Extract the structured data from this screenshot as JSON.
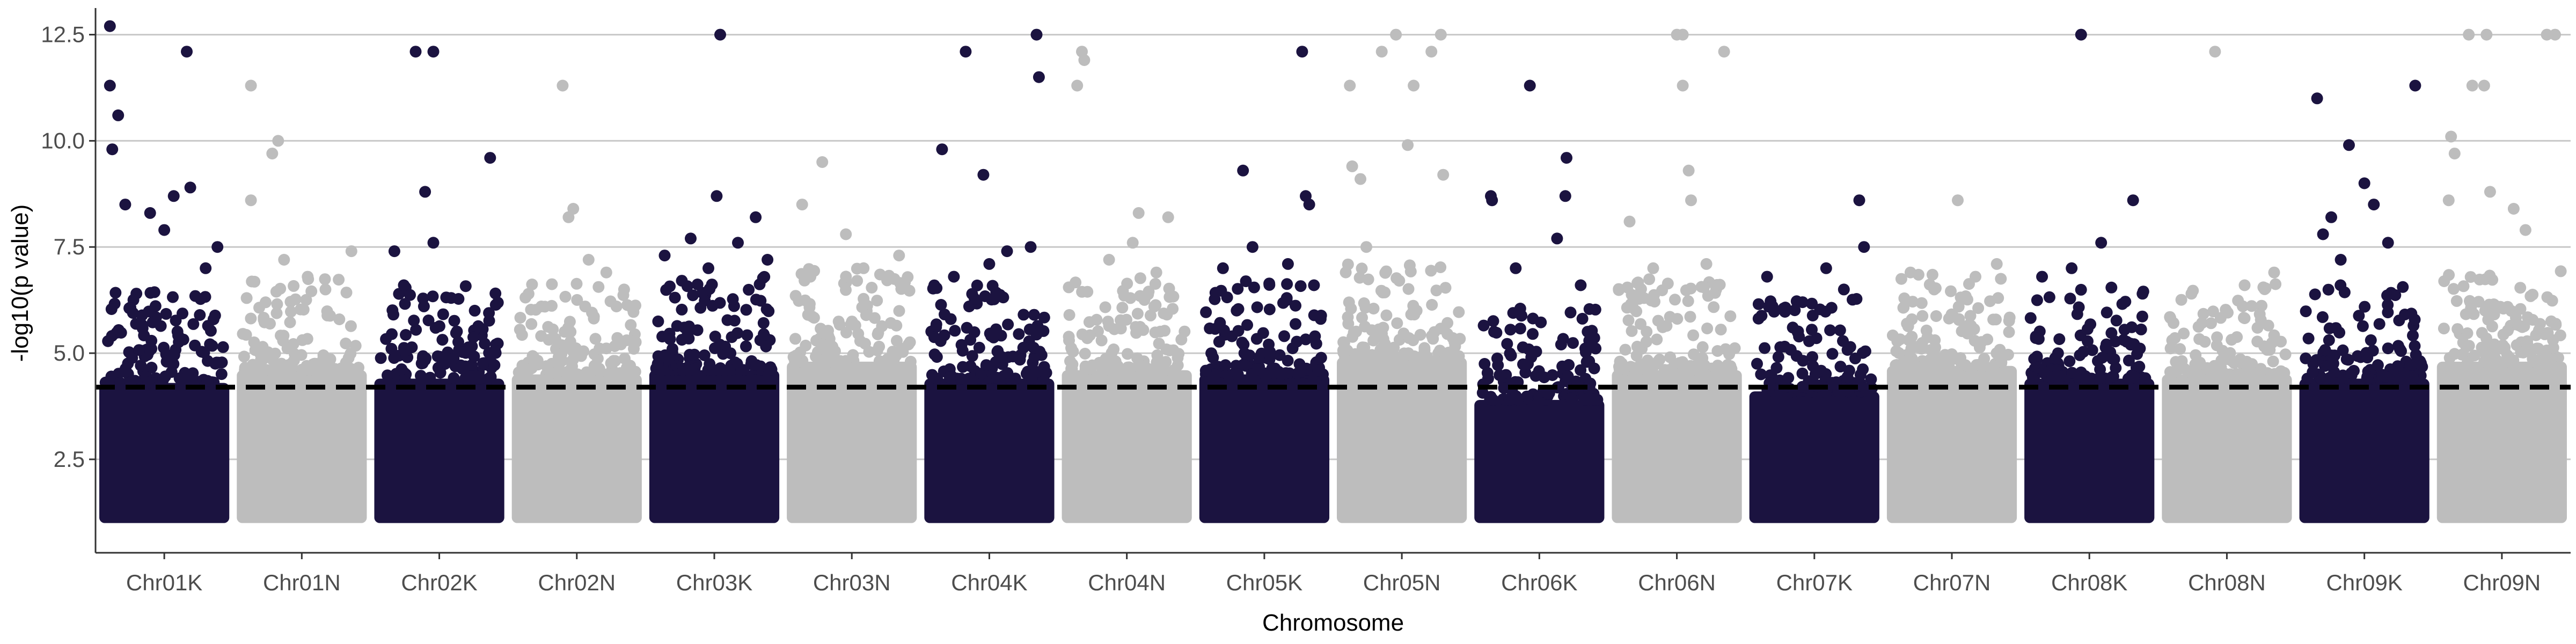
{
  "chart_data": {
    "type": "scatter",
    "subtype": "manhattan",
    "xlabel": "Chromosome",
    "ylabel": "-log10(p value)",
    "ylim": [
      0.3,
      13.0
    ],
    "y_ticks": [
      2.5,
      5.0,
      7.5,
      10.0,
      12.5
    ],
    "y_tick_labels": [
      "2.5",
      "5.0",
      "7.5",
      "10.0",
      "12.5"
    ],
    "grid": "horizontal major lines",
    "threshold": {
      "value": 4.2,
      "style": "dashed",
      "color": "#000000"
    },
    "colors": {
      "odd": "#1b1340",
      "even": "#bdbdbd"
    },
    "categories": [
      "Chr01K",
      "Chr01N",
      "Chr02K",
      "Chr02N",
      "Chr03K",
      "Chr03N",
      "Chr04K",
      "Chr04N",
      "Chr05K",
      "Chr05N",
      "Chr06K",
      "Chr06N",
      "Chr07K",
      "Chr07N",
      "Chr08K",
      "Chr08N",
      "Chr09K",
      "Chr09N"
    ],
    "series": [
      {
        "category": "Chr01K",
        "band_top": 4.3,
        "max": 12.7,
        "peaks": [
          [
            0.04,
            12.7
          ],
          [
            0.04,
            11.3
          ],
          [
            0.11,
            10.6
          ],
          [
            0.06,
            9.8
          ],
          [
            0.69,
            12.1
          ],
          [
            0.58,
            8.7
          ],
          [
            0.72,
            8.9
          ],
          [
            0.17,
            8.5
          ],
          [
            0.38,
            8.3
          ],
          [
            0.5,
            7.9
          ],
          [
            0.95,
            7.5
          ],
          [
            0.85,
            7.0
          ]
        ]
      },
      {
        "category": "Chr01N",
        "band_top": 4.6,
        "max": 11.3,
        "peaks": [
          [
            0.07,
            11.3
          ],
          [
            0.3,
            10.0
          ],
          [
            0.25,
            9.7
          ],
          [
            0.07,
            8.6
          ],
          [
            0.92,
            7.4
          ],
          [
            0.35,
            7.2
          ],
          [
            0.55,
            6.8
          ],
          [
            0.7,
            6.5
          ]
        ]
      },
      {
        "category": "Chr02K",
        "band_top": 4.4,
        "max": 12.1,
        "peaks": [
          [
            0.3,
            12.1
          ],
          [
            0.45,
            12.1
          ],
          [
            0.93,
            9.6
          ],
          [
            0.38,
            8.8
          ],
          [
            0.45,
            7.6
          ],
          [
            0.12,
            7.4
          ],
          [
            0.2,
            6.6
          ],
          [
            0.6,
            6.3
          ],
          [
            0.8,
            6.0
          ]
        ]
      },
      {
        "category": "Chr02N",
        "band_top": 4.5,
        "max": 11.3,
        "peaks": [
          [
            0.38,
            11.3
          ],
          [
            0.47,
            8.4
          ],
          [
            0.43,
            8.2
          ],
          [
            0.6,
            7.2
          ],
          [
            0.75,
            6.9
          ],
          [
            0.9,
            6.5
          ],
          [
            0.2,
            6.1
          ]
        ]
      },
      {
        "category": "Chr03K",
        "band_top": 4.6,
        "max": 12.5,
        "peaks": [
          [
            0.55,
            12.5
          ],
          [
            0.52,
            8.7
          ],
          [
            0.08,
            7.3
          ],
          [
            0.85,
            8.2
          ],
          [
            0.3,
            7.7
          ],
          [
            0.7,
            7.6
          ],
          [
            0.95,
            7.2
          ],
          [
            0.45,
            7.0
          ]
        ]
      },
      {
        "category": "Chr03N",
        "band_top": 4.8,
        "max": 9.5,
        "peaks": [
          [
            0.25,
            9.5
          ],
          [
            0.08,
            8.5
          ],
          [
            0.45,
            7.8
          ],
          [
            0.9,
            7.3
          ],
          [
            0.6,
            7.0
          ],
          [
            0.15,
            6.8
          ]
        ]
      },
      {
        "category": "Chr04K",
        "band_top": 4.4,
        "max": 12.5,
        "peaks": [
          [
            0.9,
            12.5
          ],
          [
            0.92,
            11.5
          ],
          [
            0.3,
            12.1
          ],
          [
            0.1,
            9.8
          ],
          [
            0.45,
            9.2
          ],
          [
            0.85,
            7.5
          ],
          [
            0.65,
            7.4
          ],
          [
            0.5,
            7.1
          ],
          [
            0.2,
            6.8
          ]
        ]
      },
      {
        "category": "Chr04N",
        "band_top": 4.6,
        "max": 12.1,
        "peaks": [
          [
            0.12,
            12.1
          ],
          [
            0.14,
            11.9
          ],
          [
            0.08,
            11.3
          ],
          [
            0.6,
            8.3
          ],
          [
            0.85,
            8.2
          ],
          [
            0.55,
            7.6
          ],
          [
            0.35,
            7.2
          ],
          [
            0.75,
            6.9
          ]
        ]
      },
      {
        "category": "Chr05K",
        "band_top": 4.5,
        "max": 12.1,
        "peaks": [
          [
            0.82,
            12.1
          ],
          [
            0.32,
            9.3
          ],
          [
            0.85,
            8.7
          ],
          [
            0.88,
            8.5
          ],
          [
            0.4,
            7.5
          ],
          [
            0.92,
            6.6
          ],
          [
            0.7,
            7.1
          ],
          [
            0.15,
            7.0
          ]
        ]
      },
      {
        "category": "Chr05N",
        "band_top": 4.9,
        "max": 12.5,
        "peaks": [
          [
            0.45,
            12.5
          ],
          [
            0.83,
            12.5
          ],
          [
            0.33,
            12.1
          ],
          [
            0.75,
            12.1
          ],
          [
            0.6,
            11.3
          ],
          [
            0.06,
            11.3
          ],
          [
            0.55,
            9.9
          ],
          [
            0.08,
            9.4
          ],
          [
            0.15,
            9.1
          ],
          [
            0.85,
            9.2
          ],
          [
            0.2,
            7.5
          ]
        ]
      },
      {
        "category": "Chr06K",
        "band_top": 3.9,
        "max": 11.3,
        "peaks": [
          [
            0.09,
            8.7
          ],
          [
            0.1,
            8.6
          ],
          [
            0.42,
            11.3
          ],
          [
            0.73,
            9.6
          ],
          [
            0.72,
            8.7
          ],
          [
            0.65,
            7.7
          ],
          [
            0.3,
            7.0
          ],
          [
            0.85,
            6.6
          ]
        ]
      },
      {
        "category": "Chr06N",
        "band_top": 4.6,
        "max": 12.5,
        "peaks": [
          [
            0.5,
            12.5
          ],
          [
            0.55,
            12.5
          ],
          [
            0.9,
            12.1
          ],
          [
            0.55,
            11.3
          ],
          [
            0.6,
            9.3
          ],
          [
            0.62,
            8.6
          ],
          [
            0.1,
            8.1
          ],
          [
            0.3,
            7.0
          ],
          [
            0.75,
            7.1
          ]
        ]
      },
      {
        "category": "Chr07K",
        "band_top": 4.1,
        "max": 8.6,
        "peaks": [
          [
            0.88,
            8.6
          ],
          [
            0.6,
            7.0
          ],
          [
            0.92,
            7.5
          ],
          [
            0.1,
            6.8
          ],
          [
            0.75,
            6.5
          ],
          [
            0.4,
            6.2
          ]
        ]
      },
      {
        "category": "Chr07N",
        "band_top": 4.7,
        "max": 8.6,
        "peaks": [
          [
            0.55,
            8.6
          ],
          [
            0.88,
            7.1
          ],
          [
            0.15,
            6.9
          ],
          [
            0.7,
            6.8
          ],
          [
            0.35,
            6.5
          ]
        ]
      },
      {
        "category": "Chr08K",
        "band_top": 4.4,
        "max": 12.5,
        "peaks": [
          [
            0.43,
            12.5
          ],
          [
            0.87,
            8.6
          ],
          [
            0.6,
            7.6
          ],
          [
            0.35,
            7.0
          ],
          [
            0.1,
            6.8
          ],
          [
            0.95,
            6.4
          ]
        ]
      },
      {
        "category": "Chr08N",
        "band_top": 4.5,
        "max": 12.1,
        "peaks": [
          [
            0.4,
            12.1
          ],
          [
            0.9,
            6.9
          ],
          [
            0.65,
            6.6
          ],
          [
            0.2,
            6.4
          ]
        ]
      },
      {
        "category": "Chr09K",
        "band_top": 4.4,
        "max": 11.3,
        "peaks": [
          [
            0.93,
            11.3
          ],
          [
            0.1,
            11.0
          ],
          [
            0.37,
            9.9
          ],
          [
            0.22,
            8.2
          ],
          [
            0.5,
            9.0
          ],
          [
            0.58,
            8.5
          ],
          [
            0.15,
            7.8
          ],
          [
            0.7,
            7.6
          ],
          [
            0.3,
            7.2
          ]
        ]
      },
      {
        "category": "Chr09N",
        "band_top": 4.8,
        "max": 12.5,
        "peaks": [
          [
            0.22,
            12.5
          ],
          [
            0.37,
            12.5
          ],
          [
            0.88,
            12.5
          ],
          [
            0.95,
            12.5
          ],
          [
            0.25,
            11.3
          ],
          [
            0.35,
            11.3
          ],
          [
            0.07,
            10.1
          ],
          [
            0.1,
            9.7
          ],
          [
            0.4,
            8.8
          ],
          [
            0.6,
            8.4
          ],
          [
            0.7,
            7.9
          ],
          [
            0.05,
            8.6
          ]
        ]
      }
    ]
  }
}
